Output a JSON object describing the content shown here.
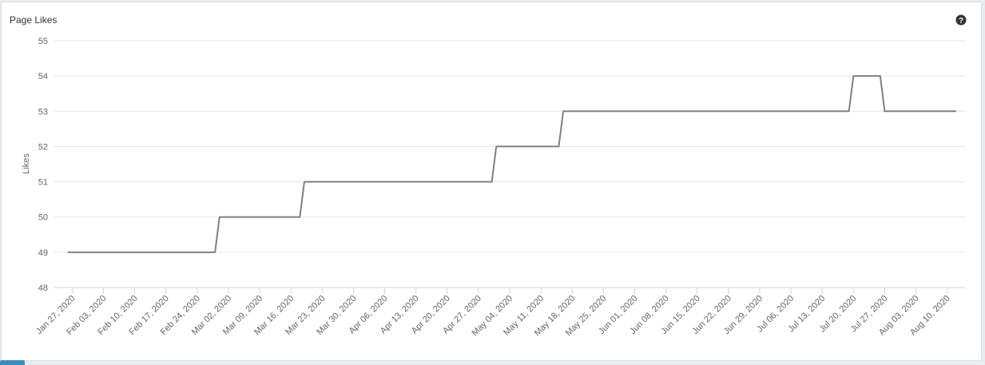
{
  "chart_data": {
    "type": "line",
    "title": "Page Likes",
    "y_label": "Likes",
    "x": [
      "2020-01-26",
      "2020-02-28",
      "2020-02-29",
      "2020-03-18",
      "2020-03-19",
      "2020-04-30",
      "2020-05-01",
      "2020-05-15",
      "2020-05-16",
      "2020-07-19",
      "2020-07-20",
      "2020-07-26",
      "2020-07-27",
      "2020-08-12"
    ],
    "series": [
      {
        "name": "Likes",
        "color": "#808080",
        "values": [
          49,
          49,
          50,
          50,
          51,
          51,
          52,
          52,
          53,
          53,
          54,
          54,
          53,
          53
        ]
      }
    ],
    "xlim": [
      "2020-01-23",
      "2020-08-14"
    ],
    "xticks": [
      {
        "value": "2020-01-27",
        "label": "Jan 27, 2020"
      },
      {
        "value": "2020-02-03",
        "label": "Feb 03, 2020"
      },
      {
        "value": "2020-02-10",
        "label": "Feb 10, 2020"
      },
      {
        "value": "2020-02-17",
        "label": "Feb 17, 2020"
      },
      {
        "value": "2020-02-24",
        "label": "Feb 24, 2020"
      },
      {
        "value": "2020-03-02",
        "label": "Mar 02, 2020"
      },
      {
        "value": "2020-03-09",
        "label": "Mar 09, 2020"
      },
      {
        "value": "2020-03-16",
        "label": "Mar 16, 2020"
      },
      {
        "value": "2020-03-23",
        "label": "Mar 23, 2020"
      },
      {
        "value": "2020-03-30",
        "label": "Mar 30, 2020"
      },
      {
        "value": "2020-04-06",
        "label": "Apr 06, 2020"
      },
      {
        "value": "2020-04-13",
        "label": "Apr 13, 2020"
      },
      {
        "value": "2020-04-20",
        "label": "Apr 20, 2020"
      },
      {
        "value": "2020-04-27",
        "label": "Apr 27, 2020"
      },
      {
        "value": "2020-05-04",
        "label": "May 04, 2020"
      },
      {
        "value": "2020-05-11",
        "label": "May 11, 2020"
      },
      {
        "value": "2020-05-18",
        "label": "May 18, 2020"
      },
      {
        "value": "2020-05-25",
        "label": "May 25, 2020"
      },
      {
        "value": "2020-06-01",
        "label": "Jun 01, 2020"
      },
      {
        "value": "2020-06-08",
        "label": "Jun 08, 2020"
      },
      {
        "value": "2020-06-15",
        "label": "Jun 15, 2020"
      },
      {
        "value": "2020-06-22",
        "label": "Jun 22, 2020"
      },
      {
        "value": "2020-06-29",
        "label": "Jun 29, 2020"
      },
      {
        "value": "2020-07-06",
        "label": "Jul 06, 2020"
      },
      {
        "value": "2020-07-13",
        "label": "Jul 13, 2020"
      },
      {
        "value": "2020-07-20",
        "label": "Jul 20, 2020"
      },
      {
        "value": "2020-07-27",
        "label": "Jul 27, 2020"
      },
      {
        "value": "2020-08-03",
        "label": "Aug 03, 2020"
      },
      {
        "value": "2020-08-10",
        "label": "Aug 10, 2020"
      }
    ],
    "ylim": [
      48,
      55
    ],
    "yticks": [
      48,
      49,
      50,
      51,
      52,
      53,
      54,
      55
    ],
    "grid": true
  }
}
